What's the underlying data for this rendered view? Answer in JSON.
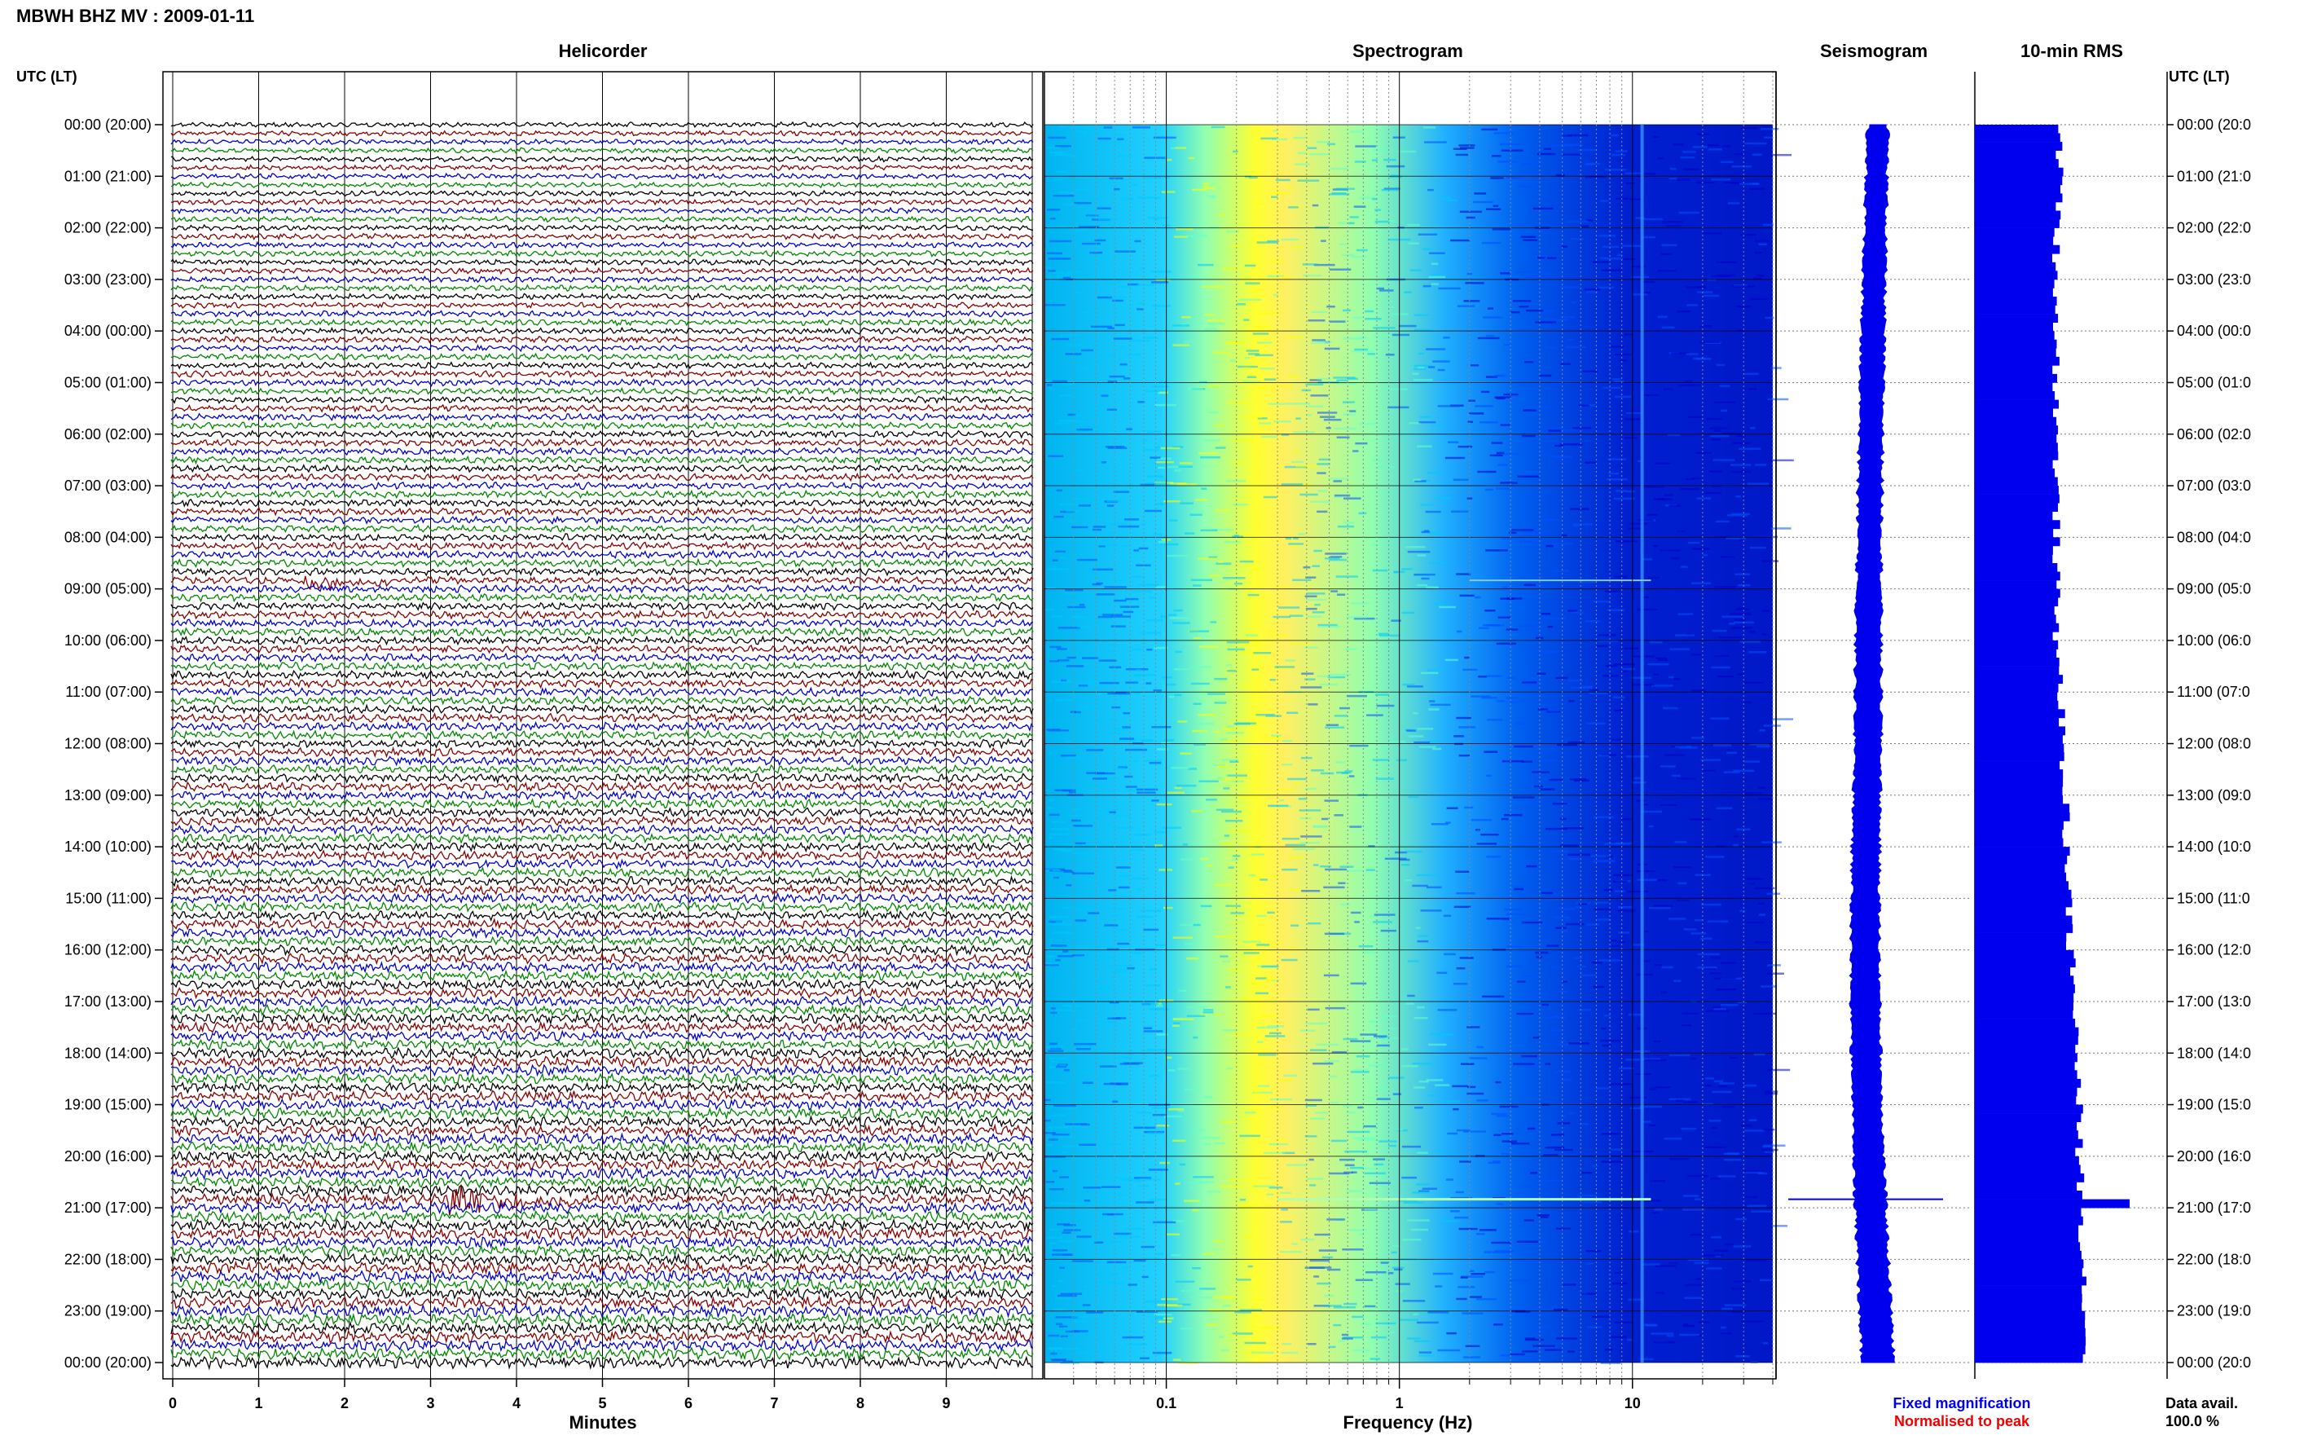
{
  "header": {
    "title": "MBWH BHZ MV : 2009-01-11",
    "utc_label": "UTC (LT)",
    "utc_label_right": "UTC (LT)"
  },
  "panels": {
    "helicorder": "Helicorder",
    "spectrogram": "Spectrogram",
    "seismogram": "Seismogram",
    "rms": "10-min RMS"
  },
  "time_labels": [
    "00:00 (20:00)",
    "01:00 (21:00)",
    "02:00 (22:00)",
    "03:00 (23:00)",
    "04:00 (00:00)",
    "05:00 (01:00)",
    "06:00 (02:00)",
    "07:00 (03:00)",
    "08:00 (04:00)",
    "09:00 (05:00)",
    "10:00 (06:00)",
    "11:00 (07:00)",
    "12:00 (08:00)",
    "13:00 (09:00)",
    "14:00 (10:00)",
    "15:00 (11:00)",
    "16:00 (12:00)",
    "17:00 (13:00)",
    "18:00 (14:00)",
    "19:00 (15:00)",
    "20:00 (16:00)",
    "21:00 (17:00)",
    "22:00 (18:00)",
    "23:00 (19:00)",
    "00:00 (20:00)"
  ],
  "time_labels_right": [
    "00:00 (20:0",
    "01:00 (21:0",
    "02:00 (22:0",
    "03:00 (23:0",
    "04:00 (00:0",
    "05:00 (01:0",
    "06:00 (02:0",
    "07:00 (03:0",
    "08:00 (04:0",
    "09:00 (05:0",
    "10:00 (06:0",
    "11:00 (07:0",
    "12:00 (08:0",
    "13:00 (09:0",
    "14:00 (10:0",
    "15:00 (11:0",
    "16:00 (12:0",
    "17:00 (13:0",
    "18:00 (14:0",
    "19:00 (15:0",
    "20:00 (16:0",
    "21:00 (17:0",
    "22:00 (18:0",
    "23:00 (19:0",
    "00:00 (20:0"
  ],
  "legend": {
    "fixed": "Fixed magnification",
    "normalised": "Normalised to peak",
    "fixed_color": "#0000ee",
    "normalised_color": "#ee0000",
    "data_avail_label": "Data avail.",
    "data_avail_value": "100.0 %"
  },
  "chart_data": [
    {
      "type": "line",
      "title": "Helicorder",
      "xlabel": "Minutes",
      "ylabel": "UTC (LT)",
      "x_ticks": [
        "0",
        "1",
        "2",
        "3",
        "4",
        "5",
        "6",
        "7",
        "8",
        "9"
      ],
      "xlim": [
        0,
        10
      ],
      "traces_per_hour": 6,
      "trace_colors": [
        "#000000",
        "#880000",
        "#0000cc",
        "#008800"
      ],
      "events": [
        {
          "time": "08:50",
          "start_min": 1.5,
          "end_min": 2.5,
          "strength": 0.3
        },
        {
          "time": "20:50",
          "start_min": 3.2,
          "end_min": 4.8,
          "strength": 1.0
        }
      ]
    },
    {
      "type": "heatmap",
      "title": "Spectrogram",
      "xlabel": "Frequency (Hz)",
      "x_scale": "log",
      "xlim": [
        0.03,
        40
      ],
      "x_ticks": [
        "0.1",
        "1",
        "10"
      ],
      "colormap": [
        "#0000c8",
        "#0050ff",
        "#00c8ff",
        "#64ffc8",
        "#ffff00",
        "#ffc000"
      ],
      "bands": [
        {
          "hz": 0.2,
          "level": "peak"
        },
        {
          "hz": 11,
          "level": "line"
        }
      ]
    },
    {
      "type": "line",
      "title": "Seismogram",
      "series_color": "#0000ee",
      "events": [
        {
          "time": "08:50",
          "amplitude": 0.1
        },
        {
          "time": "20:50",
          "amplitude": 1.0
        }
      ]
    },
    {
      "type": "bar",
      "title": "10-min RMS",
      "bar_color": "#0000ee",
      "values_relative": [
        0.52,
        0.52,
        0.5,
        0.5,
        0.5,
        0.5,
        0.5,
        0.5,
        0.5,
        0.5,
        0.52,
        0.53,
        0.54,
        0.56,
        0.57,
        0.58,
        0.6,
        0.62,
        0.63,
        0.64,
        0.65,
        0.66,
        0.67,
        0.68
      ],
      "peak": {
        "time": "20:50",
        "value": 0.95
      }
    }
  ]
}
